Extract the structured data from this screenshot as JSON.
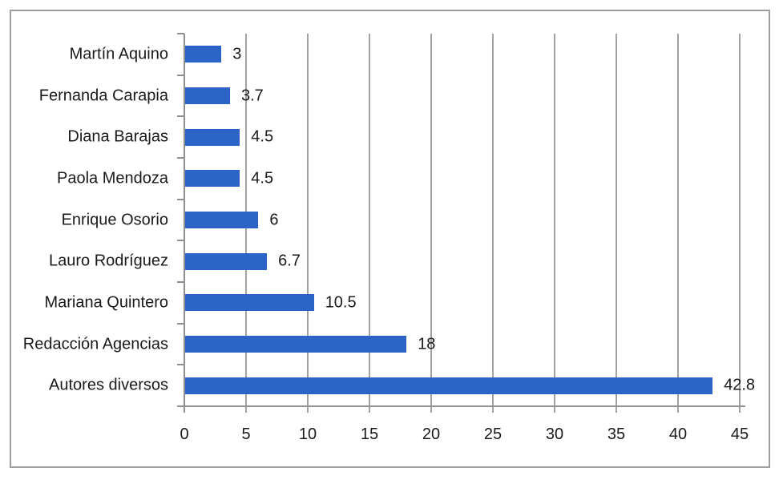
{
  "chart_data": {
    "type": "bar",
    "orientation": "horizontal",
    "title": "",
    "xlabel": "",
    "ylabel": "",
    "legend_position": "none",
    "grid": "vertical gridlines every 5 units",
    "categories": [
      "Martín Aquino",
      "Fernanda Carapia",
      "Diana Barajas",
      "Paola Mendoza",
      "Enrique Osorio",
      "Lauro Rodríguez",
      "Mariana Quintero",
      "Redacción Agencias",
      "Autores diversos"
    ],
    "values": [
      3,
      3.7,
      4.5,
      4.5,
      6,
      6.7,
      10.5,
      18,
      42.8
    ],
    "value_labels": [
      "3",
      "3.7",
      "4.5",
      "4.5",
      "6",
      "6.7",
      "10.5",
      "18",
      "42.8"
    ],
    "xlim": [
      0,
      45
    ],
    "xticks": [
      0,
      5,
      10,
      15,
      20,
      25,
      30,
      35,
      40,
      45
    ],
    "colors": {
      "bar": "#2A64C6",
      "gridline": "#A2A2A2",
      "axis": "#8F8F8F",
      "frame_border": "#9E9E9E",
      "text": "#1A1A1A",
      "background": "#FFFFFF"
    }
  }
}
